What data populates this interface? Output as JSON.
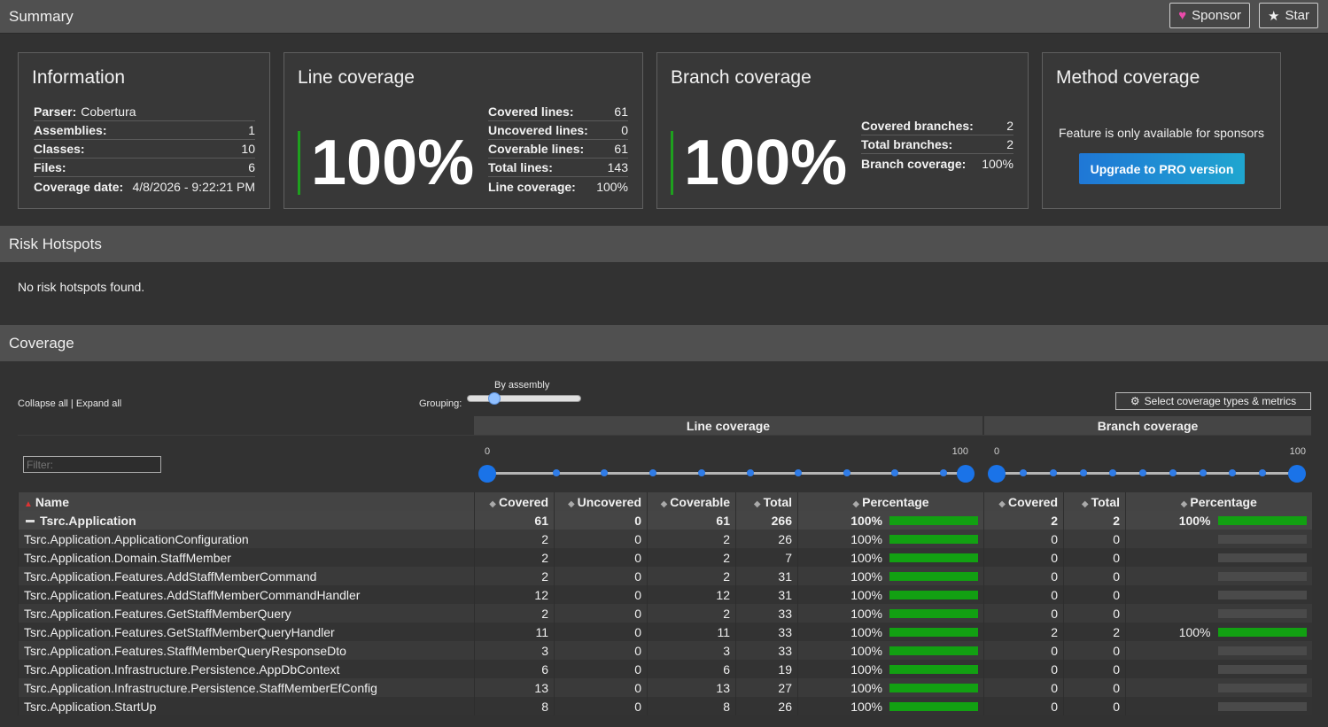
{
  "summary": {
    "title": "Summary",
    "sponsor_label": "Sponsor",
    "star_label": "Star"
  },
  "information": {
    "title": "Information",
    "rows": [
      {
        "key": "Parser:",
        "value": "Cobertura"
      },
      {
        "key": "Assemblies:",
        "value": "1"
      },
      {
        "key": "Classes:",
        "value": "10"
      },
      {
        "key": "Files:",
        "value": "6"
      },
      {
        "key": "Coverage date:",
        "value": "4/8/2026 - 9:22:21 PM"
      }
    ]
  },
  "line_coverage": {
    "title": "Line coverage",
    "big": "100%",
    "rows": [
      {
        "key": "Covered lines:",
        "value": "61"
      },
      {
        "key": "Uncovered lines:",
        "value": "0"
      },
      {
        "key": "Coverable lines:",
        "value": "61"
      },
      {
        "key": "Total lines:",
        "value": "143"
      },
      {
        "key": "Line coverage:",
        "value": "100%"
      }
    ]
  },
  "branch_coverage": {
    "title": "Branch coverage",
    "big": "100%",
    "rows": [
      {
        "key": "Covered branches:",
        "value": "2"
      },
      {
        "key": "Total branches:",
        "value": "2"
      },
      {
        "key": "Branch coverage:",
        "value": "100%"
      }
    ]
  },
  "method_coverage": {
    "title": "Method coverage",
    "text": "Feature is only available for sponsors",
    "button": "Upgrade to PRO version"
  },
  "risk": {
    "title": "Risk Hotspots",
    "text": "No risk hotspots found."
  },
  "coverage": {
    "title": "Coverage",
    "collapse_all": "Collapse all",
    "separator": " | ",
    "expand_all": "Expand all",
    "grouping_label": "Grouping:",
    "grouping_value": "By assembly",
    "grouping_level": 0.2,
    "select_button": "Select coverage types & metrics",
    "group_line": "Line coverage",
    "group_branch": "Branch coverage",
    "filter_placeholder": "Filter:",
    "range_min": "0",
    "range_max": "100",
    "columns": {
      "name": "Name",
      "covered": "Covered",
      "uncovered": "Uncovered",
      "coverable": "Coverable",
      "total": "Total",
      "percentage": "Percentage",
      "b_covered": "Covered",
      "b_total": "Total",
      "b_percentage": "Percentage"
    },
    "assembly": {
      "name": "Tsrc.Application",
      "covered": "61",
      "uncovered": "0",
      "coverable": "61",
      "total": "266",
      "pct": "100%",
      "pct_value": 100,
      "b_covered": "2",
      "b_total": "2",
      "b_pct": "100%",
      "b_pct_value": 100
    },
    "rows": [
      {
        "name": "Tsrc.Application.ApplicationConfiguration",
        "covered": "2",
        "uncovered": "0",
        "coverable": "2",
        "total": "26",
        "pct": "100%",
        "pct_value": 100,
        "b_covered": "0",
        "b_total": "0",
        "b_pct": "",
        "b_pct_value": null
      },
      {
        "name": "Tsrc.Application.Domain.StaffMember",
        "covered": "2",
        "uncovered": "0",
        "coverable": "2",
        "total": "7",
        "pct": "100%",
        "pct_value": 100,
        "b_covered": "0",
        "b_total": "0",
        "b_pct": "",
        "b_pct_value": null
      },
      {
        "name": "Tsrc.Application.Features.AddStaffMemberCommand",
        "covered": "2",
        "uncovered": "0",
        "coverable": "2",
        "total": "31",
        "pct": "100%",
        "pct_value": 100,
        "b_covered": "0",
        "b_total": "0",
        "b_pct": "",
        "b_pct_value": null
      },
      {
        "name": "Tsrc.Application.Features.AddStaffMemberCommandHandler",
        "covered": "12",
        "uncovered": "0",
        "coverable": "12",
        "total": "31",
        "pct": "100%",
        "pct_value": 100,
        "b_covered": "0",
        "b_total": "0",
        "b_pct": "",
        "b_pct_value": null
      },
      {
        "name": "Tsrc.Application.Features.GetStaffMemberQuery",
        "covered": "2",
        "uncovered": "0",
        "coverable": "2",
        "total": "33",
        "pct": "100%",
        "pct_value": 100,
        "b_covered": "0",
        "b_total": "0",
        "b_pct": "",
        "b_pct_value": null
      },
      {
        "name": "Tsrc.Application.Features.GetStaffMemberQueryHandler",
        "covered": "11",
        "uncovered": "0",
        "coverable": "11",
        "total": "33",
        "pct": "100%",
        "pct_value": 100,
        "b_covered": "2",
        "b_total": "2",
        "b_pct": "100%",
        "b_pct_value": 100
      },
      {
        "name": "Tsrc.Application.Features.StaffMemberQueryResponseDto",
        "covered": "3",
        "uncovered": "0",
        "coverable": "3",
        "total": "33",
        "pct": "100%",
        "pct_value": 100,
        "b_covered": "0",
        "b_total": "0",
        "b_pct": "",
        "b_pct_value": null
      },
      {
        "name": "Tsrc.Application.Infrastructure.Persistence.AppDbContext",
        "covered": "6",
        "uncovered": "0",
        "coverable": "6",
        "total": "19",
        "pct": "100%",
        "pct_value": 100,
        "b_covered": "0",
        "b_total": "0",
        "b_pct": "",
        "b_pct_value": null
      },
      {
        "name": "Tsrc.Application.Infrastructure.Persistence.StaffMemberEfConfig",
        "covered": "13",
        "uncovered": "0",
        "coverable": "13",
        "total": "27",
        "pct": "100%",
        "pct_value": 100,
        "b_covered": "0",
        "b_total": "0",
        "b_pct": "",
        "b_pct_value": null
      },
      {
        "name": "Tsrc.Application.StartUp",
        "covered": "8",
        "uncovered": "0",
        "coverable": "8",
        "total": "26",
        "pct": "100%",
        "pct_value": 100,
        "b_covered": "0",
        "b_total": "0",
        "b_pct": "",
        "b_pct_value": null
      }
    ]
  },
  "colors": {
    "accent_green": "#12a012",
    "accent_blue": "#1a73e8",
    "sponsor_heart": "#ea4aaa"
  }
}
